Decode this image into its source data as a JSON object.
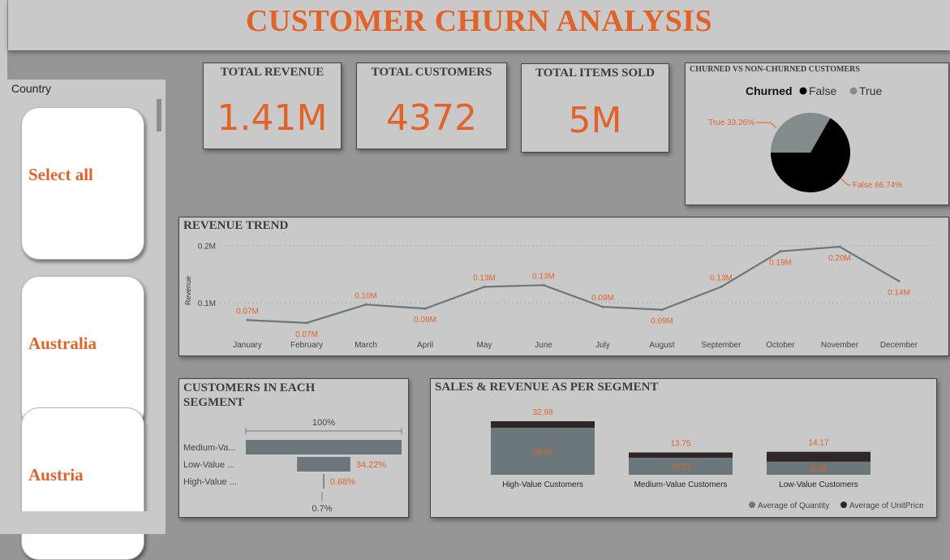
{
  "header": {
    "title": "CUSTOMER CHURN ANALYSIS"
  },
  "slicer": {
    "label": "Country",
    "items": [
      {
        "label": "Select all"
      },
      {
        "label": "Australia"
      },
      {
        "label": "Austria"
      }
    ]
  },
  "kpis": {
    "revenue": {
      "title": "TOTAL REVENUE",
      "value": "1.41M"
    },
    "customers": {
      "title": "TOTAL CUSTOMERS",
      "value": "4372"
    },
    "items": {
      "title": "TOTAL ITEMS SOLD",
      "value": "5M"
    }
  },
  "pie_panel": {
    "title": "CHURNED VS NON-CHURNED CUSTOMERS"
  },
  "revenue_panel": {
    "title": "REVENUE TREND"
  },
  "segment_panel": {
    "title_line1": "CUSTOMERS IN EACH",
    "title_line2": "SEGMENT"
  },
  "sales_panel": {
    "title": "SALES & REVENUE AS PER SEGMENT"
  },
  "colors": {
    "accent": "#e0632a",
    "panel_bg": "#c9c9c9",
    "page_bg": "#969696",
    "series_gray": "#6c777b",
    "series_dark": "#2f2727"
  },
  "chart_data": [
    {
      "type": "pie",
      "legend_title": "Churned",
      "legend_position": "top",
      "slices": [
        {
          "name": "False",
          "value": 66.74,
          "label": "False 66.74%",
          "color": "#000000"
        },
        {
          "name": "True",
          "value": 33.26,
          "label": "True 33.26%",
          "color": "#838b8d"
        }
      ]
    },
    {
      "type": "line",
      "ylabel": "Revenue",
      "y_ticks": [
        "0.1M",
        "0.2M"
      ],
      "ylim": [
        0.045,
        0.215
      ],
      "grid": true,
      "categories": [
        "January",
        "February",
        "March",
        "April",
        "May",
        "June",
        "July",
        "August",
        "September",
        "October",
        "November",
        "December"
      ],
      "values": [
        0.07,
        0.065,
        0.097,
        0.09,
        0.128,
        0.131,
        0.093,
        0.088,
        0.128,
        0.19,
        0.198,
        0.138
      ],
      "data_labels": [
        "0.07M",
        "0.07M",
        "0.10M",
        "0.09M",
        "0.13M",
        "0.13M",
        "0.09M",
        "0.09M",
        "0.13M",
        "0.19M",
        "0.20M",
        "0.14M"
      ]
    },
    {
      "type": "bar",
      "orientation": "horizontal",
      "subtype": "funnel",
      "top_label": "100%",
      "bottom_label": "0.7%",
      "categories": [
        "Medium-Va...",
        "Low-Value ...",
        "High-Value ..."
      ],
      "values": [
        100,
        34.22,
        0.68
      ],
      "data_labels": [
        "",
        "34.22%",
        "0.68%"
      ]
    },
    {
      "type": "bar",
      "subtype": "stacked",
      "legend_position": "bottom-right",
      "categories": [
        "High-Value Customers",
        "Medium-Value Customers",
        "Low-Value Customers"
      ],
      "series": [
        {
          "name": "Average of Quantity",
          "values": [
            29.0,
            10.51,
            8.06
          ],
          "color": "#6c777b"
        },
        {
          "name": "Average of UnitPrice",
          "values": [
            3.98,
            3.24,
            6.11
          ],
          "color": "#2f2727"
        }
      ],
      "totals": [
        "32.98",
        "13.75",
        "14.17"
      ],
      "segment_labels": [
        "29.00",
        "10.51",
        "8.06"
      ]
    }
  ]
}
